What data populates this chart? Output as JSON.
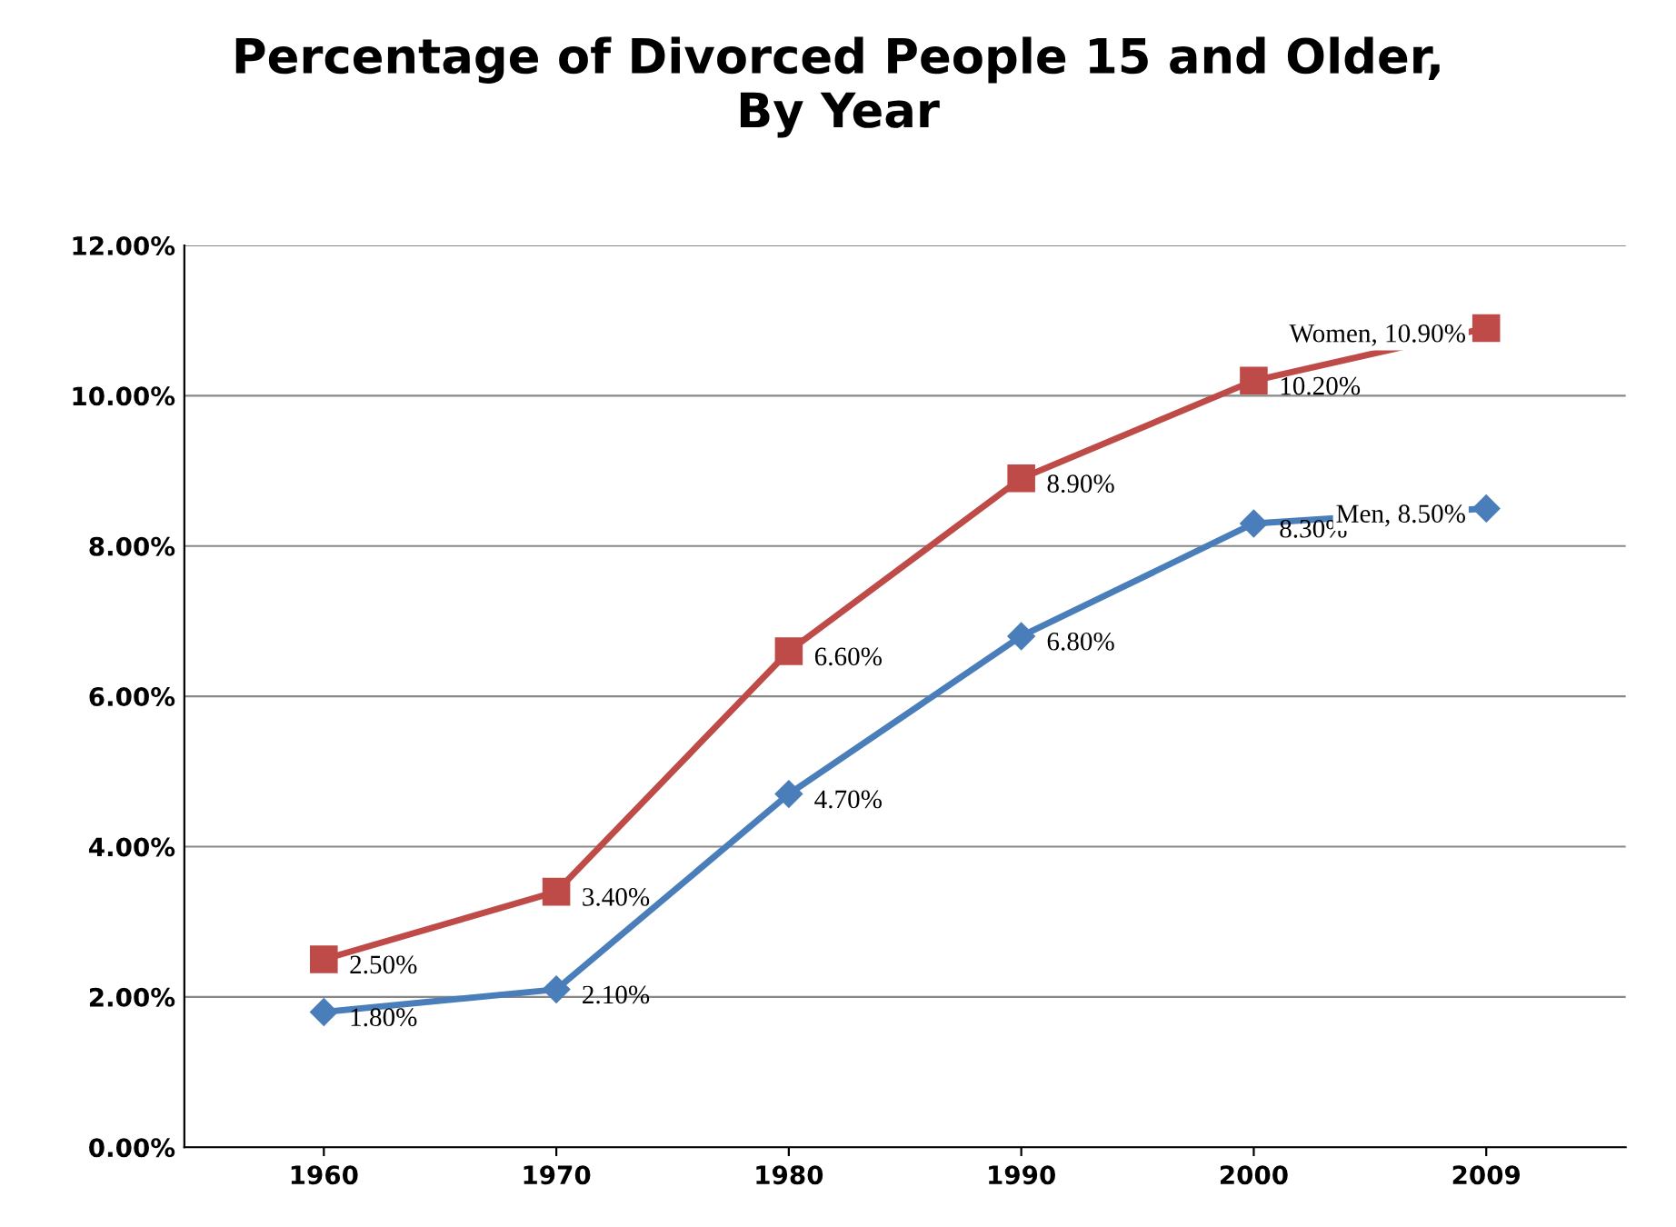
{
  "chart_data": {
    "type": "line",
    "title": "Percentage of Divorced People 15 and Older,\nBy Year",
    "categories": [
      "1960",
      "1970",
      "1980",
      "1990",
      "2000",
      "2009"
    ],
    "series": [
      {
        "color": "#be4b48",
        "marker": "square",
        "values": [
          2.5,
          3.4,
          6.6,
          8.9,
          10.2,
          10.9
        ],
        "value_labels": [
          "2.50%",
          "3.40%",
          "6.60%",
          "8.90%",
          "10.20%",
          "Women, 10.90%"
        ]
      },
      {
        "color": "#4a7ebb",
        "marker": "diamond",
        "values": [
          1.8,
          2.1,
          4.7,
          6.8,
          8.3,
          8.5
        ],
        "value_labels": [
          "1.80%",
          "2.10%",
          "4.70%",
          "6.80%",
          "8.30%",
          "Men, 8.50%"
        ]
      }
    ],
    "ylim": [
      0,
      12
    ],
    "yticks": [
      {
        "value": 0,
        "label": "0.00%"
      },
      {
        "value": 2,
        "label": "2.00%"
      },
      {
        "value": 4,
        "label": "4.00%"
      },
      {
        "value": 6,
        "label": "6.00%"
      },
      {
        "value": 8,
        "label": "8.00%"
      },
      {
        "value": 10,
        "label": "10.00%"
      },
      {
        "value": 12,
        "label": "12.00%"
      }
    ],
    "grid": "y",
    "line_style": "solid"
  }
}
